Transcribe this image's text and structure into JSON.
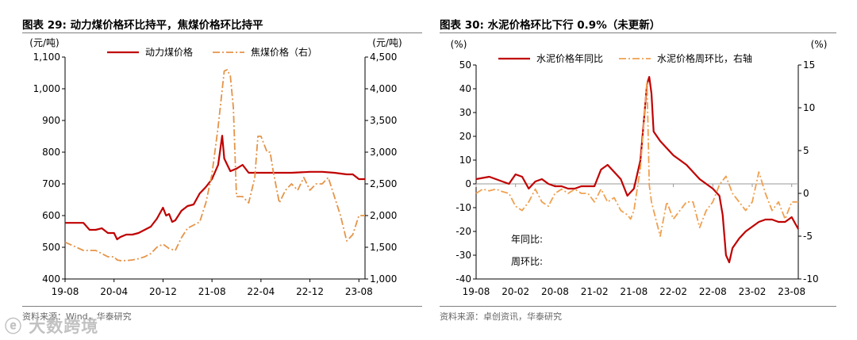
{
  "charts": [
    {
      "title": "图表 29:   动力煤价格环比持平，焦煤价格环比持平",
      "source": "资料来源：Wind，华泰研究",
      "chart_data": {
        "type": "line",
        "left_unit": "(元/吨)",
        "right_unit": "(元/吨)",
        "left_ylim": [
          400,
          1100
        ],
        "right_ylim": [
          1000,
          4500
        ],
        "left_ticks": [
          "1,100",
          "1,000",
          "900",
          "800",
          "700",
          "600",
          "500",
          "400"
        ],
        "right_ticks": [
          "4,500",
          "4,000",
          "3,500",
          "3,000",
          "2,500",
          "2,000",
          "1,500",
          "1,000"
        ],
        "x_ticks": [
          "19-08",
          "20-04",
          "20-12",
          "21-08",
          "22-04",
          "22-12",
          "23-08"
        ],
        "x_range": [
          "2019-08",
          "2023-09"
        ],
        "grid": false,
        "legend_position": "top",
        "series": [
          {
            "name": "动力煤价格",
            "axis": "left",
            "color": "#c00000",
            "dash": "solid",
            "x": [
              "2019-08",
              "2019-11",
              "2019-12",
              "2020-01",
              "2020-02",
              "2020-03",
              "2020-04",
              "2020-04-15",
              "2020-05",
              "2020-06",
              "2020-07",
              "2020-08",
              "2020-09",
              "2020-10",
              "2020-11",
              "2020-12",
              "2020-12-15",
              "2021-01",
              "2021-01-15",
              "2021-02",
              "2021-03",
              "2021-04",
              "2021-05",
              "2021-06",
              "2021-07",
              "2021-08",
              "2021-09",
              "2021-09-20",
              "2021-10",
              "2021-10-15",
              "2021-11",
              "2021-12",
              "2022-01",
              "2022-02",
              "2022-03",
              "2022-04",
              "2022-06",
              "2022-09",
              "2022-12",
              "2023-02",
              "2023-04",
              "2023-06",
              "2023-07",
              "2023-08",
              "2023-09"
            ],
            "y": [
              577,
              577,
              555,
              555,
              560,
              545,
              545,
              525,
              532,
              540,
              540,
              545,
              555,
              565,
              590,
              625,
              600,
              605,
              580,
              585,
              615,
              630,
              635,
              670,
              690,
              715,
              760,
              852,
              780,
              760,
              740,
              748,
              760,
              735,
              735,
              735,
              735,
              735,
              738,
              738,
              735,
              730,
              730,
              715,
              715
            ]
          },
          {
            "name": "焦煤价格（右）",
            "axis": "right",
            "color": "#e59449",
            "dash": "dash-dot",
            "x": [
              "2019-08",
              "2019-11",
              "2020-01",
              "2020-02",
              "2020-03",
              "2020-04",
              "2020-04-15",
              "2020-05",
              "2020-06",
              "2020-07",
              "2020-08",
              "2020-09",
              "2020-10",
              "2020-11",
              "2020-12",
              "2021-01",
              "2021-02",
              "2021-03",
              "2021-04",
              "2021-05",
              "2021-06",
              "2021-07",
              "2021-08",
              "2021-09",
              "2021-10",
              "2021-10-15",
              "2021-11",
              "2021-11-15",
              "2021-12",
              "2022-01",
              "2022-02",
              "2022-03",
              "2022-03-15",
              "2022-04",
              "2022-05",
              "2022-05-15",
              "2022-06",
              "2022-07",
              "2022-08",
              "2022-09",
              "2022-10",
              "2022-11",
              "2022-12",
              "2023-01",
              "2023-02",
              "2023-03",
              "2023-04",
              "2023-05",
              "2023-06",
              "2023-07",
              "2023-08",
              "2023-09"
            ],
            "y": [
              1580,
              1450,
              1450,
              1400,
              1350,
              1350,
              1300,
              1290,
              1290,
              1300,
              1320,
              1350,
              1400,
              1500,
              1550,
              1480,
              1450,
              1650,
              1800,
              1850,
              1900,
              2200,
              2650,
              3400,
              4280,
              4300,
              4200,
              3700,
              2300,
              2300,
              2200,
              2600,
              3250,
              3250,
              3000,
              3000,
              2700,
              2200,
              2400,
              2500,
              2400,
              2600,
              2400,
              2500,
              2500,
              2600,
              2300,
              2000,
              1600,
              1700,
              2000,
              2000
            ]
          }
        ]
      }
    },
    {
      "title": "图表 30:   水泥价格环比下行 0.9%（未更新）",
      "source": "资料来源：卓创资讯，华泰研究",
      "chart_data": {
        "type": "line",
        "left_unit": "(%)",
        "right_unit": "(%)",
        "left_ylim": [
          -40,
          50
        ],
        "right_ylim": [
          -10,
          15
        ],
        "left_ticks": [
          "50",
          "40",
          "30",
          "20",
          "10",
          "0",
          "-10",
          "-20",
          "-30",
          "-40"
        ],
        "right_ticks": [
          "15",
          "10",
          "5",
          "0",
          "-5",
          "-10"
        ],
        "x_ticks": [
          "19-08",
          "20-02",
          "20-08",
          "21-02",
          "21-08",
          "22-02",
          "22-08",
          "23-02",
          "23-08"
        ],
        "x_range": [
          "2019-08",
          "2023-09"
        ],
        "grid": false,
        "legend_position": "top",
        "annotations": [
          "年同比:",
          "周环比:"
        ],
        "series": [
          {
            "name": "水泥价格年同比",
            "axis": "left",
            "color": "#c00000",
            "dash": "solid",
            "x": [
              "2019-08",
              "2019-10",
              "2019-11",
              "2019-12",
              "2020-01",
              "2020-02",
              "2020-03",
              "2020-04",
              "2020-05",
              "2020-06",
              "2020-07",
              "2020-08",
              "2020-09",
              "2020-10",
              "2020-11",
              "2020-12",
              "2021-01",
              "2021-02",
              "2021-03",
              "2021-04",
              "2021-05",
              "2021-06",
              "2021-07",
              "2021-08",
              "2021-09",
              "2021-10",
              "2021-10-10",
              "2021-10-20",
              "2021-11",
              "2021-12",
              "2022-01",
              "2022-02",
              "2022-03",
              "2022-04",
              "2022-05",
              "2022-06",
              "2022-07",
              "2022-08",
              "2022-09",
              "2022-09-15",
              "2022-10",
              "2022-10-15",
              "2022-11",
              "2022-12",
              "2023-01",
              "2023-02",
              "2023-03",
              "2023-04",
              "2023-05",
              "2023-06",
              "2023-07",
              "2023-08",
              "2023-09"
            ],
            "y": [
              2,
              3,
              2,
              1,
              0,
              4,
              3,
              -2,
              1,
              2,
              0,
              -1,
              -1,
              -2,
              -2,
              -1,
              -1,
              -1,
              6,
              8,
              5,
              2,
              -5,
              -2,
              10,
              42,
              45,
              38,
              22,
              18,
              15,
              12,
              10,
              8,
              5,
              2,
              0,
              -2,
              -5,
              -13,
              -30,
              -33,
              -27,
              -23,
              -20,
              -18,
              -16,
              -15,
              -15,
              -16,
              -16,
              -14,
              -19
            ]
          },
          {
            "name": "水泥价格周环比，右轴",
            "axis": "right",
            "color": "#f0a050",
            "dash": "dash-dot",
            "x": [
              "2019-08",
              "2019-09",
              "2019-10",
              "2019-11",
              "2019-12",
              "2020-01",
              "2020-02",
              "2020-03",
              "2020-04",
              "2020-05",
              "2020-06",
              "2020-07",
              "2020-08",
              "2020-09",
              "2020-10",
              "2020-11",
              "2020-12",
              "2021-01",
              "2021-02",
              "2021-03",
              "2021-04",
              "2021-05",
              "2021-06",
              "2021-07",
              "2021-07-15",
              "2021-08",
              "2021-09",
              "2021-09-20",
              "2021-10",
              "2021-10-10",
              "2021-10-20",
              "2021-11",
              "2021-12",
              "2022-01",
              "2022-02",
              "2022-03",
              "2022-04",
              "2022-05",
              "2022-06",
              "2022-07",
              "2022-08",
              "2022-09",
              "2022-10",
              "2022-11",
              "2022-12",
              "2023-01",
              "2023-02",
              "2023-03",
              "2023-04",
              "2023-05",
              "2023-06",
              "2023-07",
              "2023-08",
              "2023-09"
            ],
            "y": [
              0,
              0.5,
              0.3,
              0.5,
              0.2,
              0,
              -1.5,
              -2,
              -1,
              0.5,
              -1,
              -1.5,
              0,
              0.5,
              0,
              0.5,
              0,
              0,
              -1,
              0.5,
              -1,
              -0.5,
              -2,
              -2.5,
              -3,
              -2,
              3,
              10,
              13,
              1,
              -1,
              -2,
              -5,
              -1,
              -3,
              -2,
              -1,
              -1,
              -4,
              -2,
              -1,
              1,
              2,
              0,
              -1,
              -2,
              -1,
              2.5,
              0,
              -2,
              -1,
              -3,
              -1,
              -1
            ]
          }
        ]
      }
    }
  ]
}
